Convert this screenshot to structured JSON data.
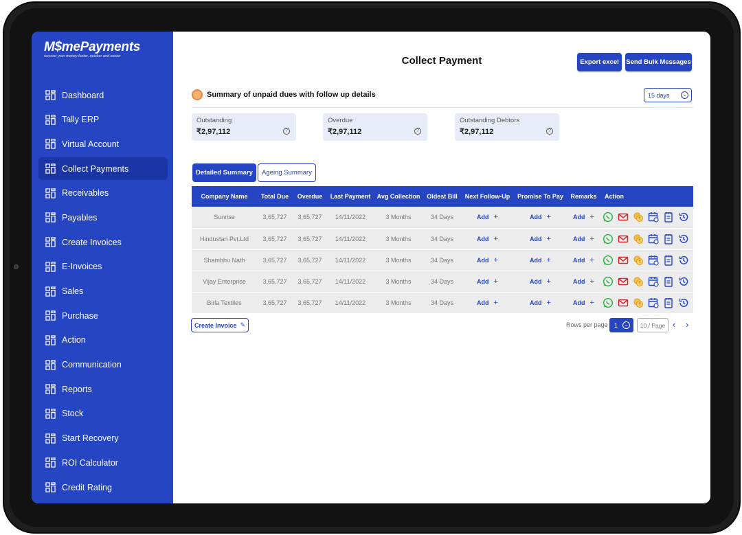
{
  "brand": {
    "name": "M$mePayments",
    "tagline": "recover your money faster, quicker and easier"
  },
  "sidebar": {
    "items": [
      {
        "label": "Dashboard",
        "active": false
      },
      {
        "label": "Tally ERP",
        "active": false
      },
      {
        "label": "Virtual Account",
        "active": false
      },
      {
        "label": "Collect Payments",
        "active": true
      },
      {
        "label": "Receivables",
        "active": false
      },
      {
        "label": "Payables",
        "active": false
      },
      {
        "label": "Create Invoices",
        "active": false
      },
      {
        "label": "E-Invoices",
        "active": false
      },
      {
        "label": "Sales",
        "active": false
      },
      {
        "label": "Purchase",
        "active": false
      },
      {
        "label": "Action",
        "active": false
      },
      {
        "label": "Communication",
        "active": false
      },
      {
        "label": "Reports",
        "active": false
      },
      {
        "label": "Stock",
        "active": false
      },
      {
        "label": "Start Recovery",
        "active": false
      },
      {
        "label": "ROI Calculator",
        "active": false
      },
      {
        "label": "Credit Rating",
        "active": false
      }
    ]
  },
  "header": {
    "title": "Collect Payment",
    "export_label": "Export excel",
    "bulk_label": "Send Bulk Messages"
  },
  "summary": {
    "heading": "Summary of unpaid dues with follow up details",
    "period": "15 days",
    "stats": [
      {
        "label": "Outstanding",
        "value": "₹2,97,112"
      },
      {
        "label": "Overdue",
        "value": "₹2,97,112"
      },
      {
        "label": "Outstanding Debtors",
        "value": "₹2,97,112"
      }
    ]
  },
  "tabs": {
    "active": "Detailed Summary",
    "inactive": "Ageing Summary"
  },
  "table": {
    "columns": [
      "Company Name",
      "Total Due",
      "Overdue",
      "Last Payment",
      "Avg Collection",
      "Oldest Bill",
      "Next Follow-Up",
      "Promise To Pay",
      "Remarks",
      "Action"
    ],
    "add_label": "Add",
    "rows": [
      {
        "company": "Sunrise",
        "total_due": "3,65,727",
        "overdue": "3,65,727",
        "last_payment": "14/11/2022",
        "avg_collection": "3 Months",
        "oldest_bill": "34 Days"
      },
      {
        "company": "Hindustan Pvt.Ltd",
        "total_due": "3,65,727",
        "overdue": "3,65,727",
        "last_payment": "14/11/2022",
        "avg_collection": "3 Months",
        "oldest_bill": "34 Days"
      },
      {
        "company": "Shambhu Nath",
        "total_due": "3,65,727",
        "overdue": "3,65,727",
        "last_payment": "14/11/2022",
        "avg_collection": "3 Months",
        "oldest_bill": "34 Days"
      },
      {
        "company": "Vijay Enterprise",
        "total_due": "3,65,727",
        "overdue": "3,65,727",
        "last_payment": "14/11/2022",
        "avg_collection": "3 Months",
        "oldest_bill": "34 Days"
      },
      {
        "company": "Birla Textiles",
        "total_due": "3,65,727",
        "overdue": "3,65,727",
        "last_payment": "14/11/2022",
        "avg_collection": "3 Months",
        "oldest_bill": "34 Days"
      }
    ],
    "action_icons": [
      "whatsapp-icon",
      "mail-icon",
      "coins-icon",
      "calendar-icon",
      "notepad-icon",
      "history-icon"
    ]
  },
  "footer": {
    "create_invoice": "Create Invoice",
    "rows_per_page_label": "Rows per page",
    "current_page": "1",
    "per_page": "10 / Page"
  },
  "colors": {
    "primary": "#2545c2",
    "sidebar_active": "#1b35a4",
    "row_bg": "#ececec",
    "stat_bg": "#e8ecf8"
  }
}
